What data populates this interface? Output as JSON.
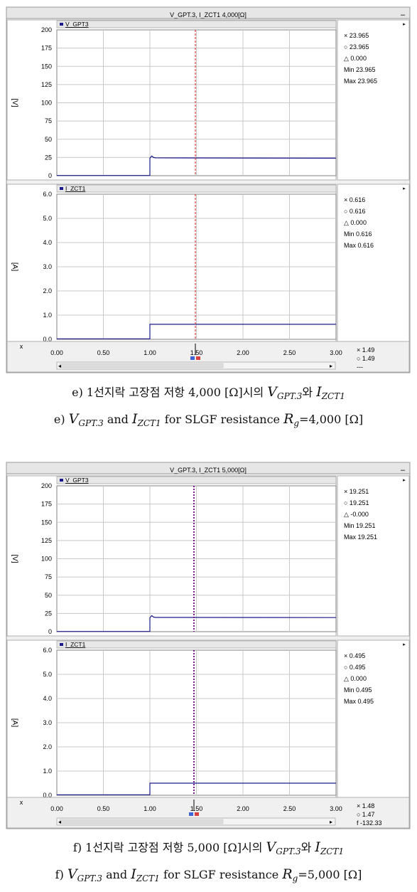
{
  "chart_data": [
    {
      "type": "line",
      "title": "V_GPT.3, I_ZCT1 4,000[Ω]",
      "x_axis": {
        "ticks": [
          "0.00",
          "0.50",
          "1.00",
          "1.50",
          "2.00",
          "2.50",
          "3.00"
        ],
        "label": "x",
        "xlim": [
          0,
          3
        ]
      },
      "cursor": {
        "x1": 1.5,
        "x2": 1.5,
        "readout": [
          "× 1.49",
          "○ 1.49",
          "---"
        ]
      },
      "panels": [
        {
          "ylabel": "[V]",
          "ylim": [
            0,
            200
          ],
          "yticks": [
            "0",
            "25",
            "50",
            "75",
            "100",
            "125",
            "150",
            "175",
            "200"
          ],
          "series": [
            {
              "name": "V_GPT3",
              "color": "#1a1a8c",
              "x": [
                0,
                1.0,
                1.0,
                1.02,
                1.04,
                1.06,
                3.0
              ],
              "y": [
                0.3,
                0.3,
                24,
                27,
                25,
                24.5,
                24
              ]
            }
          ],
          "readout": [
            "× 23.965",
            "○ 23.965",
            "△ 0.000",
            "Min 23.965",
            "Max 23.965"
          ]
        },
        {
          "ylabel": "[A]",
          "ylim": [
            0,
            6
          ],
          "yticks": [
            "0.0",
            "1.0",
            "2.0",
            "3.0",
            "4.0",
            "5.0",
            "6.0"
          ],
          "series": [
            {
              "name": "I_ZCT1",
              "color": "#1a1a8c",
              "x": [
                0,
                1.0,
                1.0,
                3.0
              ],
              "y": [
                0.02,
                0.02,
                0.62,
                0.62
              ]
            }
          ],
          "readout": [
            "× 0.616",
            "○ 0.616",
            "△ 0.000",
            "Min 0.616",
            "Max 0.616"
          ]
        }
      ]
    },
    {
      "type": "line",
      "title": "V_GPT.3, I_ZCT1 5,000[Ω]",
      "x_axis": {
        "ticks": [
          "0.00",
          "0.50",
          "1.00",
          "1.50",
          "2.00",
          "2.50",
          "3.00"
        ],
        "label": "x",
        "xlim": [
          0,
          3
        ]
      },
      "cursor": {
        "x1": 1.48,
        "x2": 1.47,
        "readout": [
          "× 1.48",
          "○ 1.47",
          "f -132.33"
        ]
      },
      "panels": [
        {
          "ylabel": "[V]",
          "ylim": [
            0,
            200
          ],
          "yticks": [
            "0",
            "25",
            "50",
            "75",
            "100",
            "125",
            "150",
            "175",
            "200"
          ],
          "series": [
            {
              "name": "V_GPT3",
              "color": "#1a1a8c",
              "x": [
                0,
                1.0,
                1.0,
                1.02,
                1.04,
                1.06,
                3.0
              ],
              "y": [
                0.3,
                0.3,
                19,
                22,
                20,
                19.5,
                19.3
              ]
            }
          ],
          "readout": [
            "× 19.251",
            "○ 19.251",
            "△ -0.000",
            "Min 19.251",
            "Max 19.251"
          ]
        },
        {
          "ylabel": "[A]",
          "ylim": [
            0,
            6
          ],
          "yticks": [
            "0.0",
            "1.0",
            "2.0",
            "3.0",
            "4.0",
            "5.0",
            "6.0"
          ],
          "series": [
            {
              "name": "I_ZCT1",
              "color": "#1a1a8c",
              "x": [
                0,
                1.0,
                1.0,
                3.0
              ],
              "y": [
                0.02,
                0.02,
                0.5,
                0.5
              ]
            }
          ],
          "readout": [
            "× 0.495",
            "○ 0.495",
            "△ 0.000",
            "Min 0.495",
            "Max 0.495"
          ]
        }
      ]
    }
  ],
  "captions": [
    {
      "kr": {
        "pre": "e) 1선지락 고장점 저항 4,000 [Ω]시의 ",
        "v": "V",
        "vsub": "GPT.3",
        "mid": "와 ",
        "i": "I",
        "isub": "ZCT1"
      },
      "en": {
        "pre": "e) ",
        "v": "V",
        "vsub": "GPT.3",
        "mid": " and ",
        "i": "I",
        "isub": "ZCT1",
        "post": " for SLGF resistance ",
        "r": "R",
        "rsub": "g",
        "tail": "=4,000 [Ω]"
      }
    },
    {
      "kr": {
        "pre": "f) 1선지락 고장점 저항 5,000 [Ω]시의 ",
        "v": "V",
        "vsub": "GPT.3",
        "mid": "와 ",
        "i": "I",
        "isub": "ZCT1"
      },
      "en": {
        "pre": "f) ",
        "v": "V",
        "vsub": "GPT.3",
        "mid": " and ",
        "i": "I",
        "isub": "ZCT1",
        "post": " for SLGF resistance ",
        "r": "R",
        "rsub": "g",
        "tail": "=5,000 [Ω]"
      }
    }
  ]
}
